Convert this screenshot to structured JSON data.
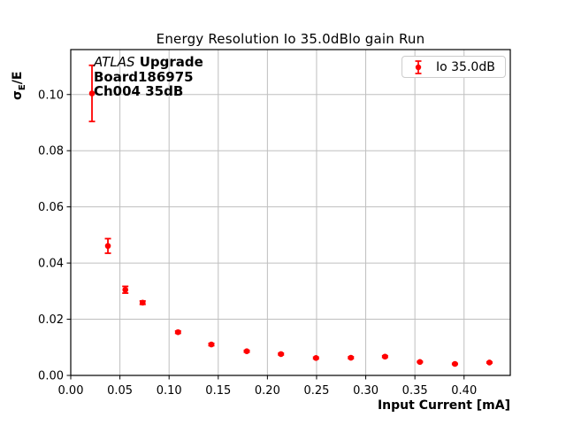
{
  "figure": {
    "title": "Energy Resolution Io 35.0dBlo gain Run",
    "xlabel": "Input Current [mA]",
    "ylabel_sigma": "σ",
    "ylabel_sub": "E",
    "ylabel_rest": "/E",
    "annotation": {
      "line1_italic": "ATLAS",
      "line1_bold": " Upgrade",
      "line2": "Board186975",
      "line3": "Ch004 35dB"
    },
    "legend": {
      "label": "Io 35.0dB"
    }
  },
  "colors": {
    "series": "#ff0000",
    "grid": "#bfbfbf",
    "spine": "#000000",
    "legend_border": "#cccccc",
    "text": "#000000"
  },
  "chart_data": {
    "type": "scatter",
    "title": "Energy Resolution Io 35.0dBlo gain Run",
    "xlabel": "Input Current [mA]",
    "ylabel": "σE/E",
    "grid": true,
    "legend_position": "upper right",
    "xlim": [
      0,
      0.447
    ],
    "ylim": [
      0,
      0.116
    ],
    "xticks": [
      0.0,
      0.05,
      0.1,
      0.15,
      0.2,
      0.25,
      0.3,
      0.35,
      0.4
    ],
    "xtick_labels": [
      "0.00",
      "0.05",
      "0.10",
      "0.15",
      "0.20",
      "0.25",
      "0.30",
      "0.35",
      "0.40"
    ],
    "yticks": [
      0.0,
      0.02,
      0.04,
      0.06,
      0.08,
      0.1
    ],
    "ytick_labels": [
      "0.00",
      "0.02",
      "0.04",
      "0.06",
      "0.08",
      "0.10"
    ],
    "series": [
      {
        "name": "Io 35.0dB",
        "marker": "circle",
        "color": "#ff0000",
        "x": [
          0.0216,
          0.0378,
          0.0555,
          0.0731,
          0.1091,
          0.143,
          0.179,
          0.2138,
          0.2494,
          0.2849,
          0.3196,
          0.3551,
          0.3907,
          0.4258
        ],
        "y": [
          0.1004,
          0.0461,
          0.0305,
          0.0259,
          0.0154,
          0.011,
          0.0086,
          0.0076,
          0.0062,
          0.0063,
          0.0067,
          0.0048,
          0.0041,
          0.0046
        ],
        "yerr": [
          0.01,
          0.0026,
          0.0012,
          0.0006,
          0.0004,
          0.0004,
          0.0003,
          0.0003,
          0.0003,
          0.0003,
          0.0003,
          0.0002,
          0.0002,
          0.0002
        ]
      }
    ]
  }
}
